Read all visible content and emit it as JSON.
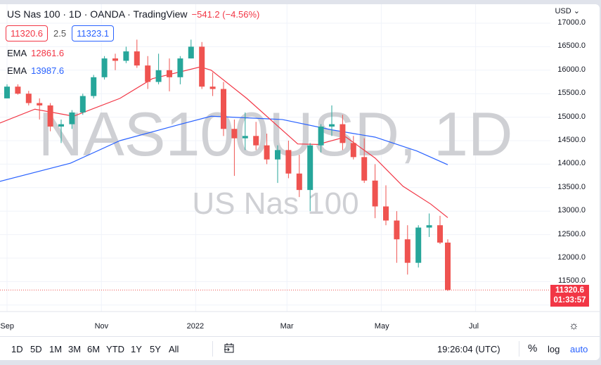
{
  "header": {
    "title": "US Nas 100 · 1D · OANDA · TradingView",
    "change": "−541.2 (−4.56%)",
    "bid": "11320.6",
    "spread": "2.5",
    "ask": "11323.1",
    "ema1_label": "EMA",
    "ema1_value": "12861.6",
    "ema2_label": "EMA",
    "ema2_value": "13987.6"
  },
  "watermark": {
    "line1": "NAS100USD, 1D",
    "line2": "US Nas 100"
  },
  "price_axis": {
    "currency": "USD",
    "last_price": "11320.6",
    "countdown": "01:33:57"
  },
  "toolbar": {
    "ranges": [
      "1D",
      "5D",
      "1M",
      "3M",
      "6M",
      "YTD",
      "1Y",
      "5Y",
      "All"
    ],
    "clock": "19:26:04 (UTC)",
    "percent": "%",
    "log": "log",
    "auto": "auto"
  },
  "icons": {
    "settings": "gear-icon",
    "goto_date": "calendar-arrow-icon",
    "currency_menu": "chevron-down-icon"
  },
  "colors": {
    "up": "#26a69a",
    "down": "#ef5350",
    "ema_fast": "#f23645",
    "ema_slow": "#2962ff",
    "watermark": "#cfd0d4"
  },
  "chart_data": {
    "type": "candlestick",
    "yticks": [
      11500,
      12000,
      12500,
      13000,
      13500,
      14000,
      14500,
      15000,
      15500,
      16000,
      16500,
      17000
    ],
    "ylim": [
      11000,
      17000
    ],
    "xticks": [
      {
        "label": "Sep",
        "date": "2021-09-01"
      },
      {
        "label": "Nov",
        "date": "2021-11-01"
      },
      {
        "label": "2022",
        "date": "2022-01-01"
      },
      {
        "label": "Mar",
        "date": "2022-03-01"
      },
      {
        "label": "May",
        "date": "2022-05-01"
      },
      {
        "label": "Jul",
        "date": "2022-07-01"
      }
    ],
    "grid": true,
    "candles": [
      [
        "2021-09-01",
        15400,
        15700,
        15400,
        15650
      ],
      [
        "2021-09-08",
        15650,
        15700,
        15480,
        15500
      ],
      [
        "2021-09-15",
        15500,
        15560,
        15250,
        15300
      ],
      [
        "2021-09-22",
        15300,
        15400,
        14950,
        15250
      ],
      [
        "2021-09-29",
        15250,
        15300,
        14700,
        14800
      ],
      [
        "2021-10-06",
        14800,
        14950,
        14450,
        14850
      ],
      [
        "2021-10-13",
        14850,
        15150,
        14750,
        15100
      ],
      [
        "2021-10-20",
        15100,
        15500,
        15050,
        15450
      ],
      [
        "2021-10-27",
        15450,
        15900,
        15400,
        15850
      ],
      [
        "2021-11-03",
        15850,
        16300,
        15800,
        16250
      ],
      [
        "2021-11-10",
        16250,
        16350,
        16000,
        16200
      ],
      [
        "2021-11-17",
        16200,
        16500,
        16150,
        16400
      ],
      [
        "2021-11-24",
        16400,
        16650,
        16050,
        16100
      ],
      [
        "2021-12-01",
        16100,
        16300,
        15600,
        15750
      ],
      [
        "2021-12-08",
        15750,
        16350,
        15700,
        16000
      ],
      [
        "2021-12-15",
        16000,
        16250,
        15550,
        15850
      ],
      [
        "2021-12-22",
        15850,
        16300,
        15700,
        16250
      ],
      [
        "2021-12-29",
        16250,
        16650,
        16250,
        16500
      ],
      [
        "2022-01-05",
        16500,
        16600,
        15600,
        15650
      ],
      [
        "2022-01-12",
        15650,
        15950,
        15450,
        15600
      ],
      [
        "2022-01-19",
        15600,
        15750,
        14600,
        14750
      ],
      [
        "2022-01-26",
        14750,
        14950,
        13750,
        14550
      ],
      [
        "2022-02-02",
        14550,
        15100,
        14300,
        14600
      ],
      [
        "2022-02-09",
        14600,
        14900,
        14300,
        14400
      ],
      [
        "2022-02-16",
        14400,
        14650,
        14000,
        14100
      ],
      [
        "2022-02-23",
        14100,
        14400,
        13600,
        14300
      ],
      [
        "2022-03-02",
        14300,
        14500,
        13700,
        13800
      ],
      [
        "2022-03-09",
        13800,
        14200,
        13300,
        13450
      ],
      [
        "2022-03-16",
        13450,
        14450,
        13000,
        14400
      ],
      [
        "2022-03-23",
        14400,
        14850,
        14250,
        14800
      ],
      [
        "2022-03-30",
        14800,
        15250,
        14600,
        14850
      ],
      [
        "2022-04-06",
        14850,
        15050,
        14300,
        14450
      ],
      [
        "2022-04-13",
        14450,
        14600,
        14100,
        14150
      ],
      [
        "2022-04-20",
        14150,
        14550,
        13600,
        13650
      ],
      [
        "2022-04-27",
        13650,
        14000,
        12850,
        13100
      ],
      [
        "2022-05-04",
        13100,
        13550,
        12700,
        12800
      ],
      [
        "2022-05-11",
        12800,
        13000,
        11900,
        12400
      ],
      [
        "2022-05-18",
        12400,
        12700,
        11650,
        11900
      ],
      [
        "2022-05-25",
        11900,
        12700,
        11800,
        12650
      ],
      [
        "2022-06-01",
        12650,
        12950,
        12450,
        12700
      ],
      [
        "2022-06-08",
        12700,
        12900,
        12300,
        12330
      ],
      [
        "2022-06-13",
        12330,
        12400,
        11300,
        11320.6
      ]
    ],
    "ema_fast": [
      [
        "2021-08-27",
        14870
      ],
      [
        "2021-09-19",
        15170
      ],
      [
        "2021-10-14",
        15020
      ],
      [
        "2021-11-13",
        15400
      ],
      [
        "2021-12-04",
        15820
      ],
      [
        "2022-01-04",
        16070
      ],
      [
        "2022-01-11",
        16000
      ],
      [
        "2022-02-03",
        15400
      ],
      [
        "2022-03-08",
        14430
      ],
      [
        "2022-03-21",
        14420
      ],
      [
        "2022-04-08",
        14580
      ],
      [
        "2022-04-27",
        14130
      ],
      [
        "2022-05-15",
        13530
      ],
      [
        "2022-06-02",
        13150
      ],
      [
        "2022-06-13",
        12861.6
      ]
    ],
    "ema_slow": [
      [
        "2021-08-27",
        13630
      ],
      [
        "2021-10-12",
        14020
      ],
      [
        "2021-11-13",
        14500
      ],
      [
        "2021-12-20",
        14830
      ],
      [
        "2022-01-11",
        15020
      ],
      [
        "2022-02-26",
        14950
      ],
      [
        "2022-03-30",
        14730
      ],
      [
        "2022-04-27",
        14575
      ],
      [
        "2022-05-24",
        14280
      ],
      [
        "2022-06-13",
        13987.6
      ]
    ]
  }
}
